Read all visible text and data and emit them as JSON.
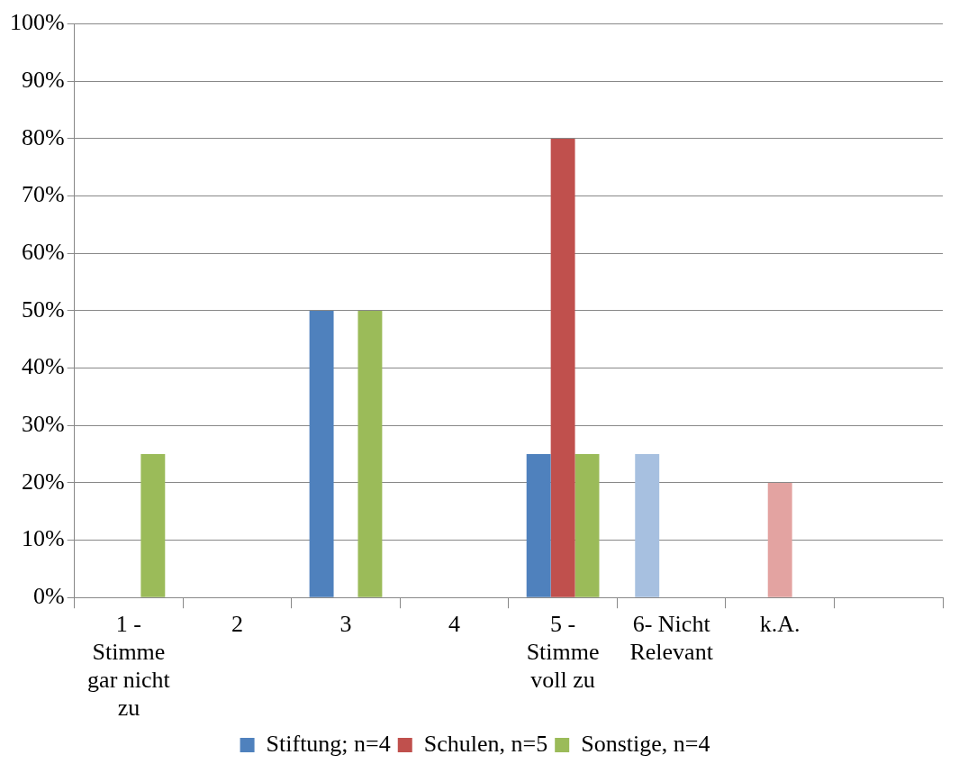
{
  "chart_data": {
    "type": "bar",
    "categories": [
      "1 - Stimme gar nicht zu",
      "2",
      "3",
      "4",
      "5 - Stimme voll zu",
      "6- Nicht Relevant",
      "k.A.",
      null
    ],
    "series": [
      {
        "name": "Stiftung; n=4",
        "color": "#4f81bd",
        "values": [
          0,
          0,
          50,
          0,
          25,
          25,
          0,
          0
        ],
        "colors": [
          "#4f81bd",
          "#4f81bd",
          "#4f81bd",
          "#4f81bd",
          "#4f81bd",
          "#a7c0e0",
          "#4f81bd",
          "#4f81bd"
        ]
      },
      {
        "name": "Schulen, n=5",
        "color": "#c0504d",
        "values": [
          0,
          0,
          0,
          0,
          80,
          0,
          20,
          0
        ],
        "colors": [
          "#c0504d",
          "#c0504d",
          "#c0504d",
          "#c0504d",
          "#c0504d",
          "#c0504d",
          "#e3a3a1",
          "#c0504d"
        ]
      },
      {
        "name": "Sonstige, n=4",
        "color": "#9bbb59",
        "values": [
          25,
          0,
          50,
          0,
          25,
          0,
          0,
          0
        ]
      }
    ],
    "ylim": [
      0,
      100
    ],
    "yticks": [
      {
        "value": 0,
        "label": "0%"
      },
      {
        "value": 10,
        "label": "10%"
      },
      {
        "value": 20,
        "label": "20%"
      },
      {
        "value": 30,
        "label": "30%"
      },
      {
        "value": 40,
        "label": "40%"
      },
      {
        "value": 50,
        "label": "50%"
      },
      {
        "value": 60,
        "label": "60%"
      },
      {
        "value": 70,
        "label": "70%"
      },
      {
        "value": 80,
        "label": "80%"
      },
      {
        "value": 90,
        "label": "90%"
      },
      {
        "value": 100,
        "label": "100%"
      }
    ],
    "grid": "y",
    "legend": "bottom"
  }
}
